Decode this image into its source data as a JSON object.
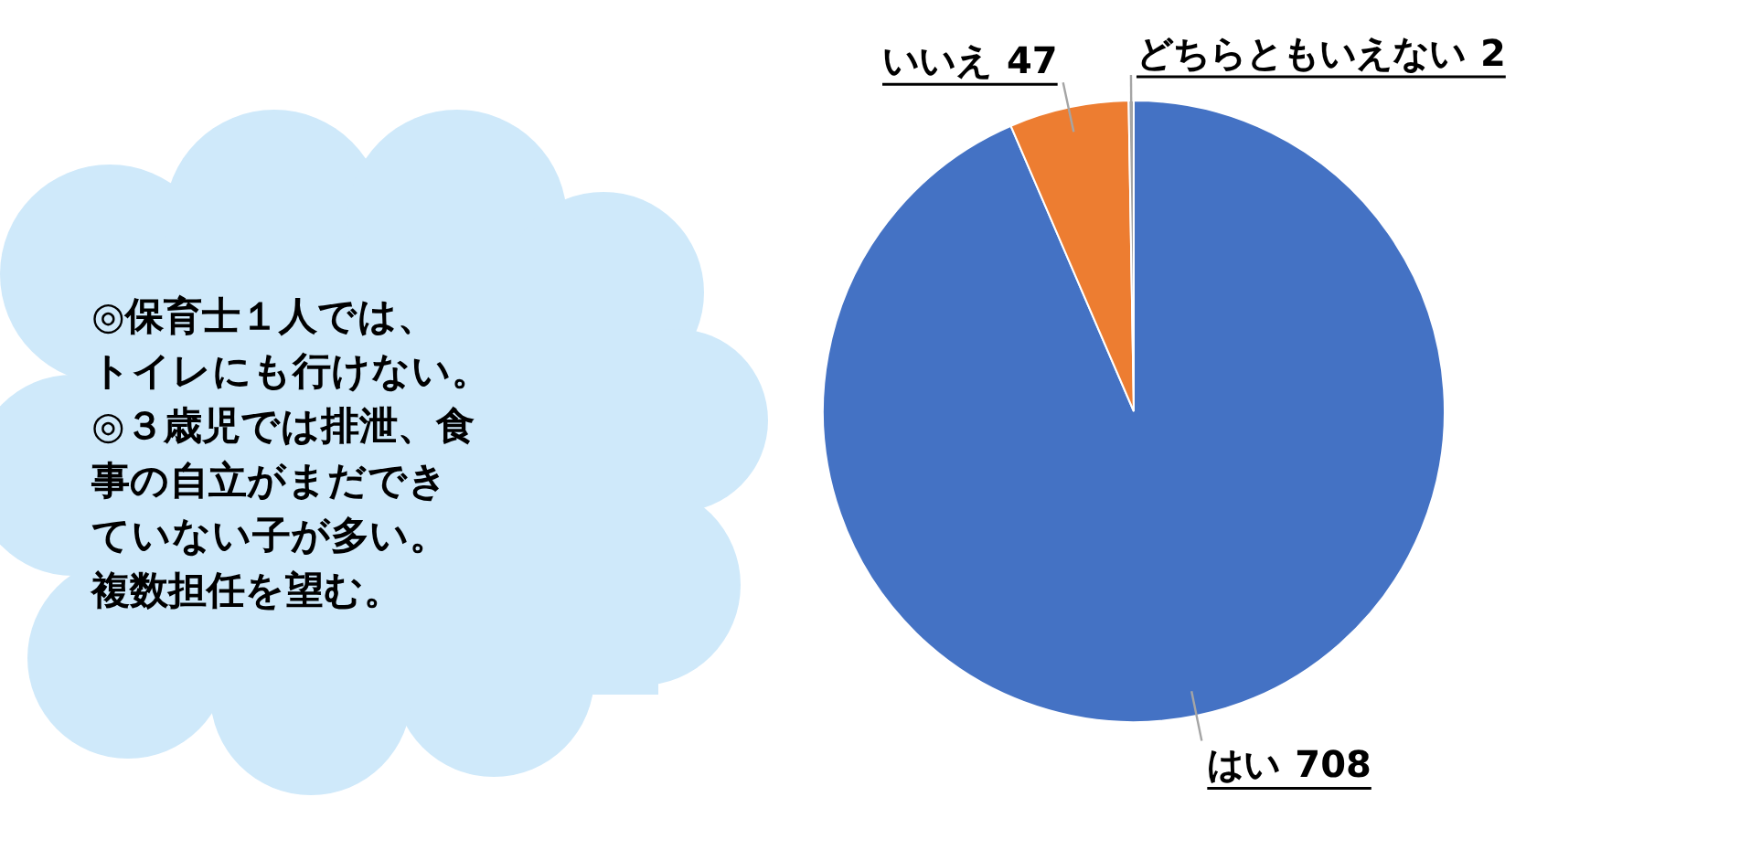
{
  "chart_data": {
    "type": "pie",
    "categories": [
      "はい",
      "いいえ",
      "どちらともいえない"
    ],
    "values": [
      708,
      47,
      2
    ],
    "colors": [
      "#4472c4",
      "#ed7d31",
      "#a5a5a5"
    ],
    "data_labels": true,
    "annotations": [
      "◎保育士１人では、",
      "トイレにも行けない。",
      "◎３歳児では排泄、食",
      "事の自立がまだでき",
      "ていない子が多い。",
      "複数担任を望む。"
    ]
  }
}
